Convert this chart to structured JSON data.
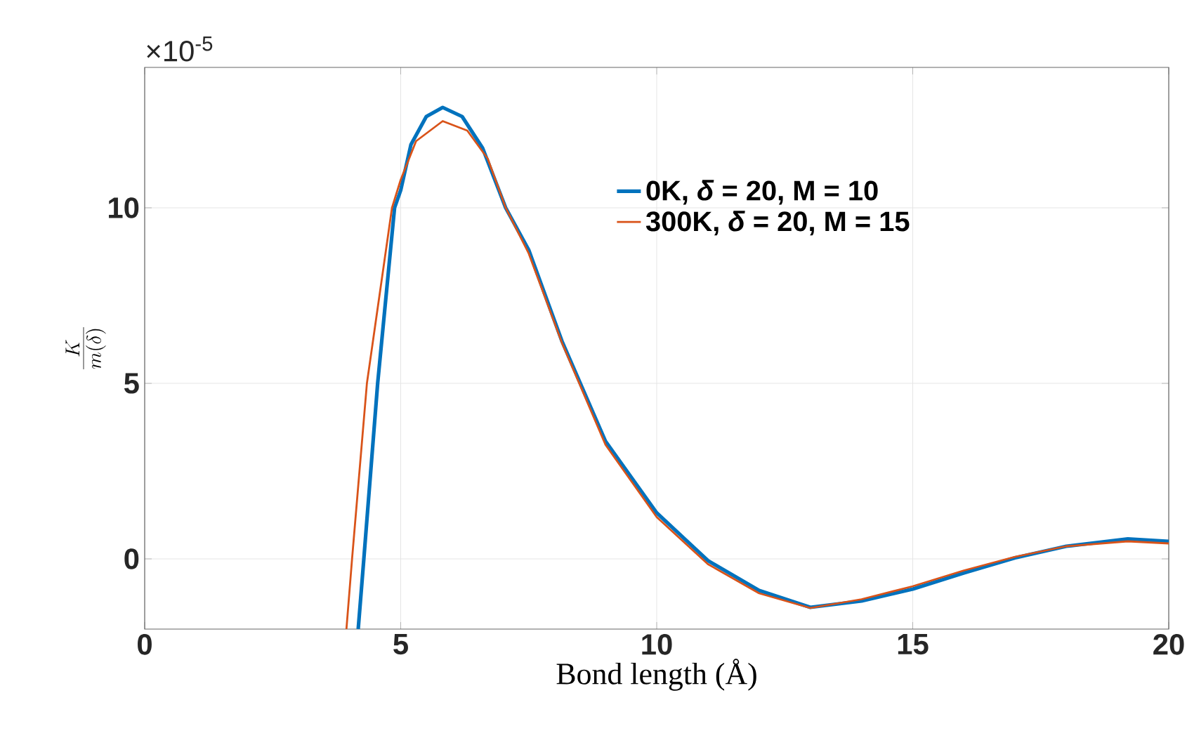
{
  "chart_data": {
    "type": "line",
    "xlabel": "Bond length (Å)",
    "ylabel": "\\frac{K}{m(\\delta)}",
    "annotations": [
      "×10$^{-5}$"
    ],
    "xlim": [
      0,
      20
    ],
    "ylim": [
      -2,
      14
    ],
    "xticks": [
      0,
      5,
      10,
      15,
      20
    ],
    "yticks": [
      0,
      5,
      10
    ],
    "grid": true,
    "legend": "top right",
    "series": [
      {
        "name": "0K,  *δ* = 20, M = 10",
        "color": "#0072bd",
        "x": [
          4.17,
          4.28,
          4.55,
          4.88,
          5.0,
          5.2,
          5.5,
          5.82,
          6.2,
          6.6,
          7.05,
          7.5,
          8.15,
          9,
          10,
          11,
          12,
          13,
          14,
          15,
          16,
          17,
          18,
          19.2,
          20
        ],
        "values": [
          -2,
          0,
          5,
          10,
          10.5,
          11.8,
          12.6,
          12.86,
          12.6,
          11.7,
          10.0,
          8.8,
          6.2,
          3.35,
          1.31,
          -0.05,
          -0.9,
          -1.38,
          -1.2,
          -0.86,
          -0.4,
          0.03,
          0.36,
          0.57,
          0.5
        ]
      },
      {
        "name": "300K,    *δ* = 20, M = 15",
        "color": "#d95319",
        "x": [
          3.94,
          4.05,
          4.34,
          4.83,
          5.0,
          5.3,
          5.82,
          6.3,
          6.7,
          7.05,
          7.5,
          8.15,
          9,
          10,
          11,
          12,
          13,
          14,
          15,
          16,
          17,
          18,
          19.2,
          20
        ],
        "values": [
          -2,
          0,
          5,
          10,
          10.8,
          11.9,
          12.47,
          12.2,
          11.4,
          10.0,
          8.7,
          6.15,
          3.25,
          1.19,
          -0.15,
          -0.98,
          -1.4,
          -1.15,
          -0.78,
          -0.33,
          0.06,
          0.36,
          0.5,
          0.44
        ]
      }
    ]
  }
}
